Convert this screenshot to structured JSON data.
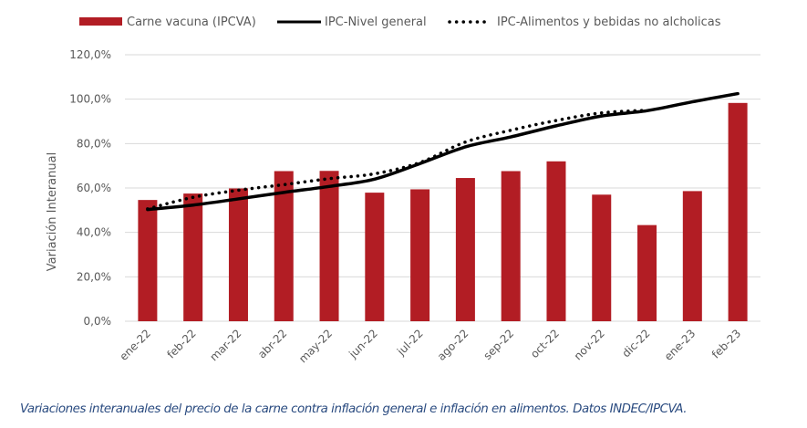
{
  "chart_data": {
    "type": "bar",
    "title": "",
    "xlabel": "",
    "ylabel": "Variación Interanual",
    "ylim": [
      0,
      120
    ],
    "yticks": [
      0,
      20,
      40,
      60,
      80,
      100,
      120
    ],
    "ytick_labels": [
      "0,0%",
      "20,0%",
      "40,0%",
      "60,0%",
      "80,0%",
      "100,0%",
      "120,0%"
    ],
    "grid": true,
    "legend_position": "top",
    "categories": [
      "ene-22",
      "feb-22",
      "mar-22",
      "abr-22",
      "may-22",
      "jun-22",
      "jul-22",
      "ago-22",
      "sep-22",
      "oct-22",
      "nov-22",
      "dic-22",
      "ene-23",
      "feb-23"
    ],
    "series": [
      {
        "name": "Carne vacuna (IPCVA)",
        "type": "bar",
        "color": "#b21d24",
        "values": [
          54.6,
          57.5,
          59.8,
          67.6,
          67.7,
          57.9,
          59.4,
          64.5,
          67.6,
          72.0,
          57.0,
          43.3,
          58.6,
          98.3
        ]
      },
      {
        "name": "IPC-Nivel general",
        "type": "line",
        "style": "solid",
        "color": "#000000",
        "values": [
          50.3,
          52.3,
          55.1,
          58.0,
          60.7,
          64.0,
          71.0,
          78.5,
          83.0,
          88.0,
          92.4,
          94.8,
          98.8,
          102.5
        ]
      },
      {
        "name": "IPC-Alimentos y bebidas no alcholicas",
        "type": "line",
        "style": "dotted",
        "color": "#000000",
        "values": [
          50.6,
          55.8,
          59.0,
          61.5,
          64.2,
          66.4,
          71.5,
          80.7,
          86.0,
          90.4,
          93.8,
          95.0,
          null,
          null
        ]
      }
    ]
  },
  "caption": "Variaciones interanuales del precio de la carne contra inflación general e inflación en alimentos. Datos INDEC/IPCVA."
}
